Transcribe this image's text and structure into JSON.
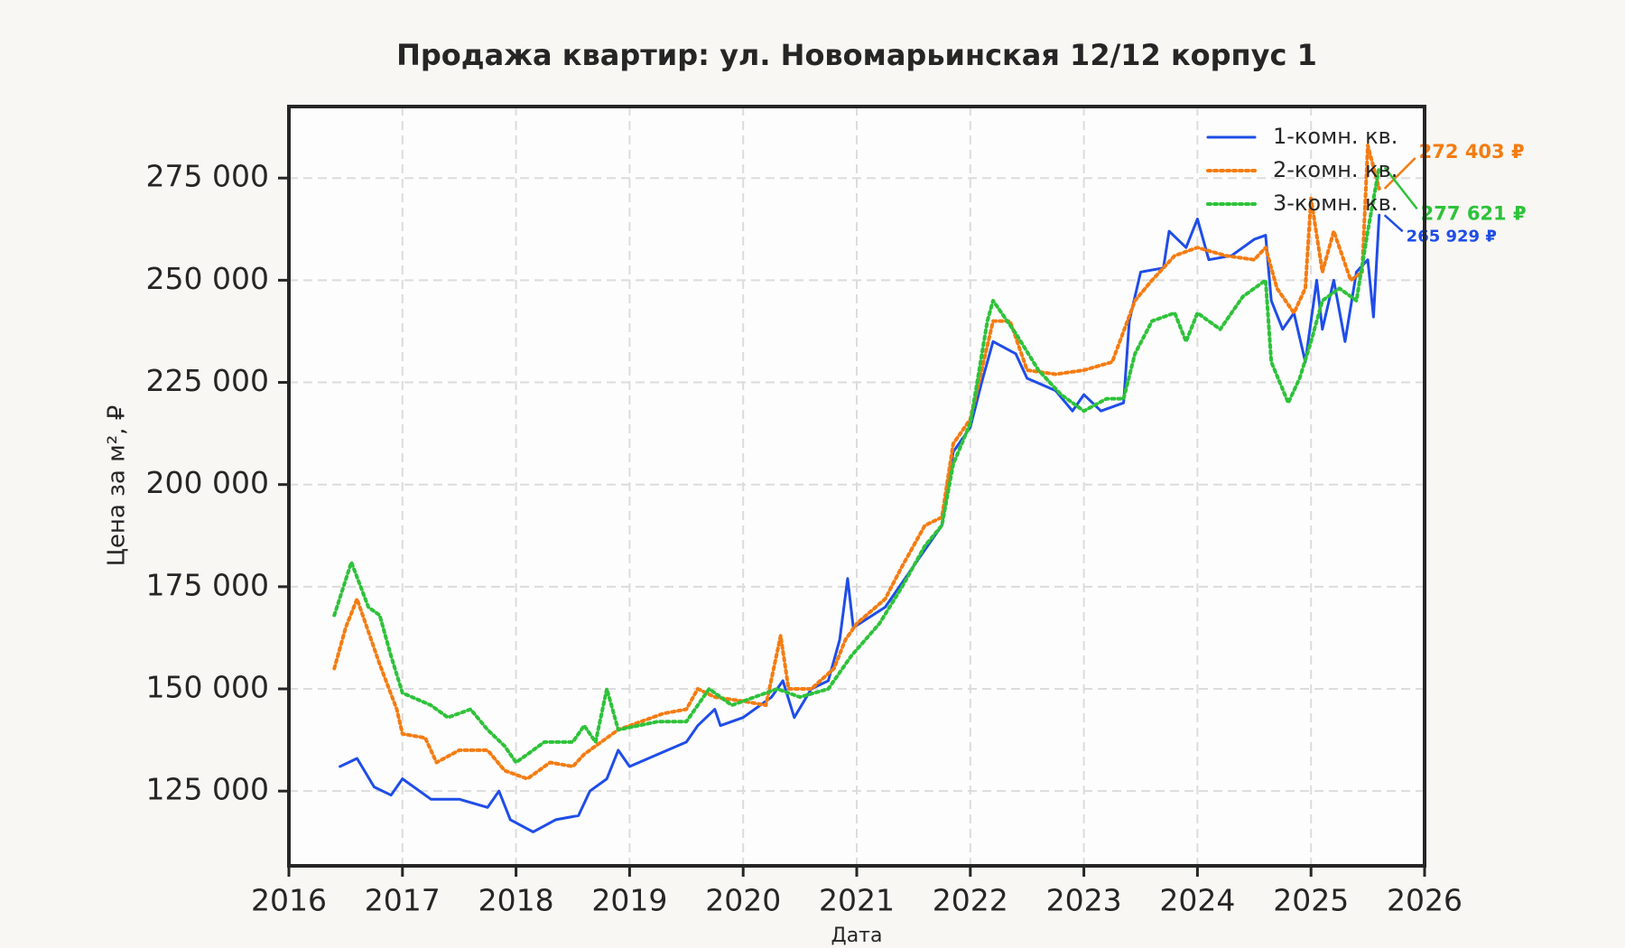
{
  "chart_data": {
    "type": "line",
    "title": "Продажа квартир: ул. Новомарьинская 12/12 корпус 1",
    "xlabel": "Дата",
    "ylabel": "Цена за м², ₽",
    "xlim": [
      2016,
      2026
    ],
    "xticks": [
      2016,
      2017,
      2018,
      2019,
      2020,
      2021,
      2022,
      2023,
      2024,
      2025,
      2026
    ],
    "ylim": [
      106700,
      292500
    ],
    "yticks": [
      {
        "value": 125000,
        "label": "125 000"
      },
      {
        "value": 150000,
        "label": "150 000"
      },
      {
        "value": 175000,
        "label": "175 000"
      },
      {
        "value": 200000,
        "label": "200 000"
      },
      {
        "value": 225000,
        "label": "225 000"
      },
      {
        "value": 250000,
        "label": "250 000"
      },
      {
        "value": 275000,
        "label": "275 000"
      }
    ],
    "grid": true,
    "legend": "upper right",
    "series": [
      {
        "name": "1-комн. кв.",
        "color": "#1f4de8",
        "style": "solid",
        "annotation": "265 929 ₽",
        "x": [
          2016.45,
          2016.6,
          2016.75,
          2016.9,
          2017.0,
          2017.25,
          2017.5,
          2017.75,
          2017.85,
          2017.95,
          2018.15,
          2018.35,
          2018.55,
          2018.65,
          2018.8,
          2018.9,
          2019.0,
          2019.25,
          2019.5,
          2019.6,
          2019.75,
          2019.8,
          2020.0,
          2020.25,
          2020.35,
          2020.45,
          2020.6,
          2020.75,
          2020.85,
          2020.92,
          2020.97,
          2021.25,
          2021.5,
          2021.75,
          2021.85,
          2022.0,
          2022.1,
          2022.2,
          2022.4,
          2022.5,
          2022.75,
          2022.9,
          2023.0,
          2023.15,
          2023.35,
          2023.4,
          2023.5,
          2023.7,
          2023.75,
          2023.9,
          2024.0,
          2024.1,
          2024.3,
          2024.5,
          2024.6,
          2024.65,
          2024.75,
          2024.85,
          2024.95,
          2025.05,
          2025.1,
          2025.2,
          2025.3,
          2025.4,
          2025.5,
          2025.55,
          2025.6
        ],
        "values": [
          131000,
          133000,
          126000,
          124000,
          128000,
          123000,
          123000,
          121000,
          125000,
          118000,
          115000,
          118000,
          119000,
          125000,
          128000,
          135000,
          131000,
          134000,
          137000,
          141000,
          145000,
          141000,
          143000,
          148000,
          152000,
          143000,
          150000,
          152000,
          162000,
          177000,
          165000,
          170000,
          180000,
          190000,
          208000,
          214000,
          225000,
          235000,
          232000,
          226000,
          223000,
          218000,
          222000,
          218000,
          220000,
          240000,
          252000,
          253000,
          262000,
          258000,
          265000,
          255000,
          256000,
          260000,
          261000,
          245000,
          238000,
          242000,
          230000,
          250000,
          238000,
          250000,
          235000,
          252000,
          255000,
          241000,
          265929
        ]
      },
      {
        "name": "2-комн. кв.",
        "color": "#f47c12",
        "style": "dotted",
        "annotation": "272 403 ₽",
        "x": [
          2016.4,
          2016.5,
          2016.6,
          2016.7,
          2016.8,
          2016.95,
          2017.0,
          2017.2,
          2017.3,
          2017.5,
          2017.75,
          2017.9,
          2018.1,
          2018.3,
          2018.5,
          2018.6,
          2018.8,
          2018.9,
          2019.1,
          2019.3,
          2019.5,
          2019.6,
          2019.75,
          2020.0,
          2020.2,
          2020.33,
          2020.4,
          2020.6,
          2020.8,
          2020.9,
          2021.0,
          2021.25,
          2021.4,
          2021.6,
          2021.75,
          2021.85,
          2022.0,
          2022.2,
          2022.35,
          2022.5,
          2022.75,
          2023.0,
          2023.25,
          2023.45,
          2023.6,
          2023.8,
          2024.0,
          2024.25,
          2024.5,
          2024.6,
          2024.7,
          2024.85,
          2024.95,
          2025.0,
          2025.1,
          2025.2,
          2025.35,
          2025.45,
          2025.5,
          2025.6
        ],
        "values": [
          155000,
          165000,
          172000,
          164000,
          156000,
          145000,
          139000,
          138000,
          132000,
          135000,
          135000,
          130000,
          128000,
          132000,
          131000,
          134000,
          138000,
          140000,
          142000,
          144000,
          145000,
          150000,
          148000,
          147000,
          146000,
          163000,
          150000,
          150000,
          155000,
          162000,
          166000,
          172000,
          180000,
          190000,
          192000,
          210000,
          216000,
          240000,
          240000,
          228000,
          227000,
          228000,
          230000,
          245000,
          250000,
          256000,
          258000,
          256000,
          255000,
          258000,
          248000,
          242000,
          248000,
          270000,
          252000,
          262000,
          250000,
          252000,
          283000,
          272403
        ]
      },
      {
        "name": "3-комн. кв.",
        "color": "#2ec23a",
        "style": "dotted",
        "annotation": "277 621 ₽",
        "x": [
          2016.4,
          2016.55,
          2016.7,
          2016.8,
          2016.9,
          2017.0,
          2017.25,
          2017.4,
          2017.6,
          2017.75,
          2017.9,
          2018.0,
          2018.25,
          2018.5,
          2018.6,
          2018.7,
          2018.8,
          2018.9,
          2019.25,
          2019.5,
          2019.7,
          2019.9,
          2020.1,
          2020.3,
          2020.5,
          2020.75,
          2020.95,
          2021.2,
          2021.4,
          2021.6,
          2021.75,
          2021.85,
          2022.0,
          2022.15,
          2022.2,
          2022.4,
          2022.6,
          2022.8,
          2023.0,
          2023.2,
          2023.35,
          2023.45,
          2023.6,
          2023.8,
          2023.9,
          2024.0,
          2024.2,
          2024.4,
          2024.6,
          2024.65,
          2024.8,
          2024.9,
          2025.0,
          2025.1,
          2025.25,
          2025.4,
          2025.5,
          2025.6
        ],
        "values": [
          168000,
          181000,
          170000,
          168000,
          158000,
          149000,
          146000,
          143000,
          145000,
          140000,
          136000,
          132000,
          137000,
          137000,
          141000,
          137000,
          150000,
          140000,
          142000,
          142000,
          150000,
          146000,
          148000,
          150000,
          148000,
          150000,
          158000,
          166000,
          175000,
          185000,
          190000,
          205000,
          215000,
          240000,
          245000,
          237000,
          228000,
          222000,
          218000,
          221000,
          221000,
          232000,
          240000,
          242000,
          235000,
          242000,
          238000,
          246000,
          250000,
          230000,
          220000,
          226000,
          235000,
          245000,
          248000,
          245000,
          262000,
          277621
        ]
      }
    ]
  }
}
